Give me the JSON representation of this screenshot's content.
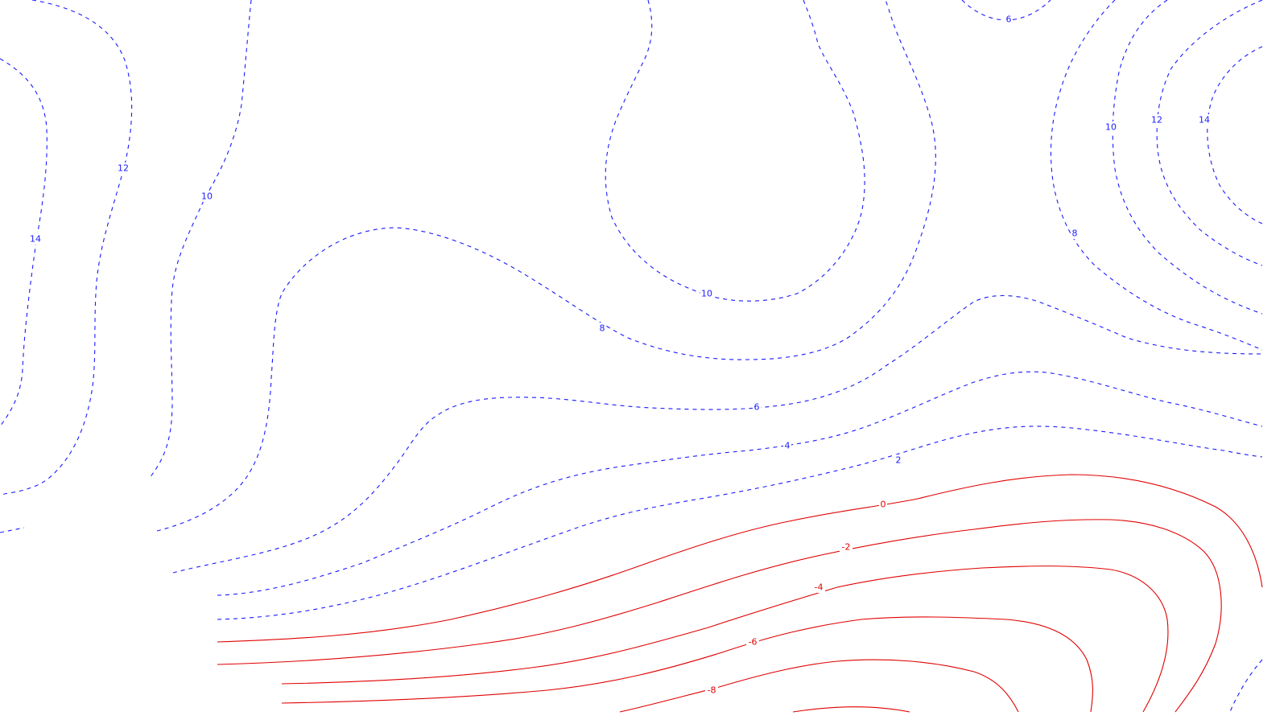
{
  "colors": {
    "positive": "#1a1aff",
    "negative": "#e00000",
    "background": "#ffffff"
  },
  "contours": [
    {
      "id": "west-14",
      "level": "14",
      "sign": "pos"
    },
    {
      "id": "west-12",
      "level": "12",
      "sign": "pos"
    },
    {
      "id": "west-10",
      "level": "10",
      "sign": "pos"
    },
    {
      "id": "center-10",
      "level": "10",
      "sign": "pos"
    },
    {
      "id": "line-8",
      "level": "8",
      "sign": "pos"
    },
    {
      "id": "line-6",
      "level": "6",
      "sign": "pos"
    },
    {
      "id": "line-4",
      "level": "4",
      "sign": "pos"
    },
    {
      "id": "line-2",
      "level": "2",
      "sign": "pos"
    },
    {
      "id": "top-6",
      "level": "6",
      "sign": "pos"
    },
    {
      "id": "east-8",
      "level": "8",
      "sign": "pos"
    },
    {
      "id": "east-10",
      "level": "10",
      "sign": "pos"
    },
    {
      "id": "east-12",
      "level": "12",
      "sign": "pos"
    },
    {
      "id": "east-14",
      "level": "14",
      "sign": "pos"
    },
    {
      "id": "line-0",
      "level": "0",
      "sign": "neg"
    },
    {
      "id": "line-m2",
      "level": "-2",
      "sign": "neg"
    },
    {
      "id": "line-m4",
      "level": "-4",
      "sign": "neg"
    },
    {
      "id": "line-m6",
      "level": "-6",
      "sign": "neg"
    },
    {
      "id": "line-m8",
      "level": "-8",
      "sign": "neg"
    }
  ]
}
